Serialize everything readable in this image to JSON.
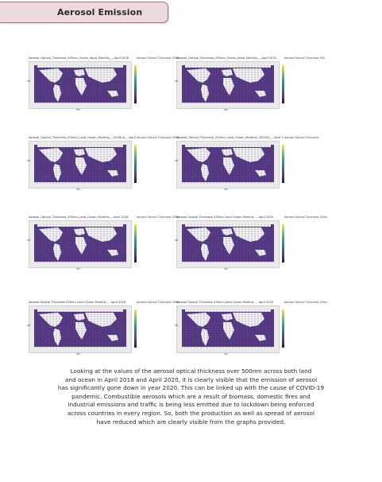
{
  "header": {
    "title": "Aerosol Emission"
  },
  "figures": [
    {
      "title": "Aerosol_Optical_Thickness_550nm_Ocean_Aqua_Monthly_...April 2018",
      "legend": "Aerosol Optical Thickness 550nm"
    },
    {
      "title": "Aerosol_Optical_Thickness_550nm_Ocean_Aqua_Monthly_...April 2020",
      "legend": "Aerosol Optical Thickness 550"
    },
    {
      "title": "Aerosol_Optical_Thickness_550nm_Land_Ocean_Monthly_...2018(4)_...April 2018",
      "legend": "Aerosol Optical Thickness 550nm"
    },
    {
      "title": "Aerosol_Optical_Thickness_550nm_Land_Ocean_Monthly_2020(4)_...April 2020",
      "legend": "Aerosol Optical Thickness"
    },
    {
      "title": "Aerosol_Optical_Thickness_550nm_Land_Ocean_Monthly_...April 2018",
      "legend": "Aerosol Optical Thickness 550nm"
    },
    {
      "title": "Aerosol Optical Thickness 550nm Land Ocean Monthly ... April 2020",
      "legend": "Aerosol Optical Thickness 550nm"
    },
    {
      "title": "Aerosol Optical Thickness 550nm Land Ocean Monthly ... April 2018",
      "legend": "Aerosol Optical Thickness 550nm"
    },
    {
      "title": "Aerosol Optical Thickness 550nm Land Ocean Monthly ... April 2020",
      "legend": "Aerosol Optical Thickness 550nm"
    }
  ],
  "axes": {
    "x": "lon",
    "y": "lat"
  },
  "colors": {
    "ocean": "#5b3c8a",
    "land": "#ffffff",
    "grid": "#2a1f4a",
    "accent": "#eddadd"
  },
  "description": [
    "Looking at the values of the aerosol optical thickness over 500nm across both land",
    "and ocean in April 2018 and April 2020, it is clearly visible that the emission of aerosol",
    "has significantly gone down in year 2020. This can be linked up with the cause of COVID-19",
    "pandemic. Combustible aerosols which are a result of biomass, domestic fires and",
    "industrial emissions and traffic is being less emitted due to lockdown being enforced",
    "across countries in every region. So, both the production as well as spread of aerosol",
    "have reduced which are clearly visible from the graphs provided."
  ]
}
